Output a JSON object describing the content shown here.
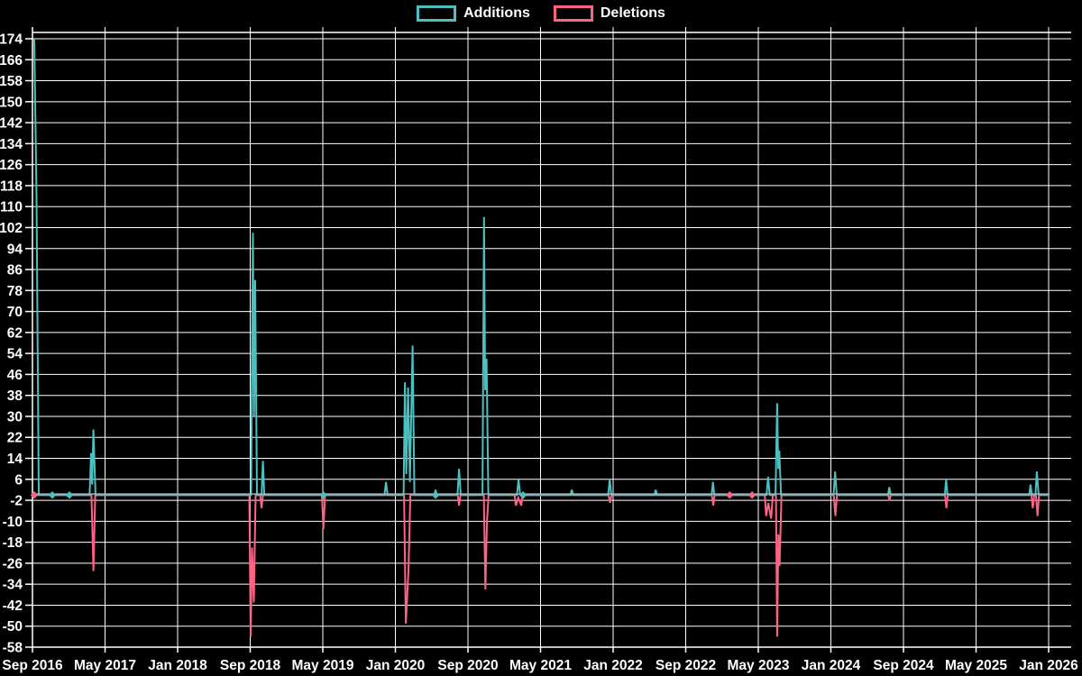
{
  "legend": {
    "additions_label": "Additions",
    "deletions_label": "Deletions"
  },
  "colors": {
    "background": "#000000",
    "grid": "#ffffff",
    "text": "#ffffff",
    "additions": "#4BC0C0",
    "deletions": "#FF6384",
    "zero_baseline": "#aab8be"
  },
  "chart_data": {
    "type": "line",
    "title": "",
    "xlabel": "",
    "ylabel": "",
    "legend_position": "top-center",
    "grid": true,
    "x_axis": {
      "tick_labels": [
        "Sep 2016",
        "May 2017",
        "Jan 2018",
        "Sep 2018",
        "May 2019",
        "Jan 2020",
        "Sep 2020",
        "May 2021",
        "Jan 2022",
        "Sep 2022",
        "May 2023",
        "Jan 2024",
        "Sep 2024",
        "May 2025",
        "Jan 2026"
      ],
      "months_per_tick": 8
    },
    "y_axis": {
      "min": -58,
      "max": 174,
      "step": 8,
      "tick_labels": [
        "174",
        "166",
        "158",
        "150",
        "142",
        "134",
        "126",
        "118",
        "110",
        "102",
        "94",
        "86",
        "78",
        "70",
        "62",
        "54",
        "46",
        "38",
        "30",
        "22",
        "14",
        "6",
        "-2",
        "-10",
        "-18",
        "-26",
        "-34",
        "-42",
        "-50",
        "-58"
      ]
    },
    "series": [
      {
        "name": "Additions",
        "color": "#4BC0C0",
        "points": [
          [
            0.2,
            174
          ],
          [
            0.45,
            114
          ],
          [
            0.7,
            0
          ],
          [
            2.19,
            0
          ],
          [
            4.08,
            0
          ],
          [
            6.3,
            0
          ],
          [
            6.46,
            16
          ],
          [
            6.58,
            4
          ],
          [
            6.72,
            25
          ],
          [
            6.95,
            0
          ],
          [
            24.1,
            0
          ],
          [
            24.3,
            100
          ],
          [
            24.42,
            30
          ],
          [
            24.55,
            82
          ],
          [
            24.75,
            0
          ],
          [
            25.25,
            0
          ],
          [
            25.4,
            13
          ],
          [
            25.55,
            0
          ],
          [
            32.07,
            0
          ],
          [
            38.8,
            0
          ],
          [
            38.97,
            5
          ],
          [
            39.15,
            0
          ],
          [
            40.9,
            0
          ],
          [
            41.05,
            43
          ],
          [
            41.2,
            8
          ],
          [
            41.4,
            41
          ],
          [
            41.6,
            5
          ],
          [
            41.9,
            57
          ],
          [
            42.1,
            0
          ],
          [
            44.3,
            0
          ],
          [
            44.43,
            2
          ],
          [
            44.56,
            0
          ],
          [
            46.85,
            0
          ],
          [
            47.02,
            10
          ],
          [
            47.2,
            0
          ],
          [
            49.6,
            0
          ],
          [
            49.77,
            106
          ],
          [
            49.9,
            40
          ],
          [
            50.05,
            52
          ],
          [
            50.25,
            0
          ],
          [
            53.4,
            0
          ],
          [
            53.58,
            6
          ],
          [
            53.75,
            0
          ],
          [
            54.08,
            0
          ],
          [
            59.3,
            0
          ],
          [
            59.44,
            2
          ],
          [
            59.6,
            0
          ],
          [
            63.45,
            0
          ],
          [
            63.62,
            6
          ],
          [
            63.8,
            0
          ],
          [
            68.55,
            0
          ],
          [
            68.69,
            2
          ],
          [
            68.85,
            0
          ],
          [
            74.85,
            0
          ],
          [
            75.0,
            5
          ],
          [
            75.15,
            0
          ],
          [
            80.9,
            0
          ],
          [
            81.08,
            7
          ],
          [
            81.25,
            0
          ],
          [
            81.9,
            0
          ],
          [
            82.08,
            35
          ],
          [
            82.2,
            10
          ],
          [
            82.32,
            17
          ],
          [
            82.5,
            0
          ],
          [
            88.3,
            0
          ],
          [
            88.47,
            9
          ],
          [
            88.65,
            0
          ],
          [
            94.3,
            0
          ],
          [
            94.43,
            3
          ],
          [
            94.6,
            0
          ],
          [
            100.55,
            0
          ],
          [
            100.7,
            6
          ],
          [
            100.85,
            0
          ],
          [
            109.85,
            0
          ],
          [
            110.0,
            4
          ],
          [
            110.15,
            0
          ],
          [
            110.55,
            0
          ],
          [
            110.7,
            9
          ],
          [
            110.9,
            0
          ],
          [
            112.1,
            0
          ]
        ]
      },
      {
        "name": "Deletions",
        "color": "#FF6384",
        "points": [
          [
            0.2,
            0
          ],
          [
            6.5,
            0
          ],
          [
            6.62,
            -15
          ],
          [
            6.72,
            -29
          ],
          [
            6.92,
            0
          ],
          [
            23.9,
            0
          ],
          [
            24.05,
            -54
          ],
          [
            24.2,
            -20
          ],
          [
            24.4,
            -41
          ],
          [
            24.6,
            0
          ],
          [
            25.1,
            0
          ],
          [
            25.25,
            -5
          ],
          [
            25.4,
            0
          ],
          [
            31.9,
            0
          ],
          [
            32.07,
            -13
          ],
          [
            32.25,
            0
          ],
          [
            40.95,
            0
          ],
          [
            41.15,
            -49
          ],
          [
            41.45,
            -28
          ],
          [
            41.65,
            0
          ],
          [
            44.43,
            0
          ],
          [
            46.88,
            0
          ],
          [
            47.02,
            -4
          ],
          [
            47.18,
            0
          ],
          [
            49.75,
            0
          ],
          [
            49.92,
            -36
          ],
          [
            50.1,
            -10
          ],
          [
            50.28,
            0
          ],
          [
            53.15,
            0
          ],
          [
            53.28,
            -4
          ],
          [
            53.55,
            -1
          ],
          [
            53.88,
            -4
          ],
          [
            54.0,
            0
          ],
          [
            63.5,
            0
          ],
          [
            63.66,
            -3
          ],
          [
            63.82,
            0
          ],
          [
            74.88,
            0
          ],
          [
            75.03,
            -4
          ],
          [
            75.18,
            0
          ],
          [
            76.84,
            0
          ],
          [
            79.32,
            0
          ],
          [
            80.72,
            0
          ],
          [
            80.86,
            -8
          ],
          [
            81.1,
            -3
          ],
          [
            81.41,
            -9
          ],
          [
            81.6,
            0
          ],
          [
            81.95,
            0
          ],
          [
            82.08,
            -54
          ],
          [
            82.22,
            -15
          ],
          [
            82.35,
            -27
          ],
          [
            82.55,
            0
          ],
          [
            88.32,
            0
          ],
          [
            88.5,
            -8
          ],
          [
            88.68,
            0
          ],
          [
            94.32,
            0
          ],
          [
            94.45,
            -2
          ],
          [
            94.6,
            0
          ],
          [
            100.58,
            0
          ],
          [
            100.73,
            -5
          ],
          [
            100.88,
            0
          ],
          [
            110.1,
            0
          ],
          [
            110.25,
            -5
          ],
          [
            110.4,
            0
          ],
          [
            110.6,
            0
          ],
          [
            110.78,
            -8
          ],
          [
            110.95,
            0
          ],
          [
            112.1,
            0
          ]
        ]
      }
    ],
    "markers": [
      {
        "series": "Deletions",
        "m": 0.2,
        "v": 0
      },
      {
        "series": "Additions",
        "m": 2.19,
        "v": 0
      },
      {
        "series": "Additions",
        "m": 4.08,
        "v": 0
      },
      {
        "series": "Additions",
        "m": 32.07,
        "v": 0
      },
      {
        "series": "Deletions",
        "m": 44.43,
        "v": 0
      },
      {
        "series": "Additions",
        "m": 44.43,
        "v": 0
      },
      {
        "series": "Additions",
        "m": 54.08,
        "v": 0
      },
      {
        "series": "Deletions",
        "m": 76.84,
        "v": 0
      },
      {
        "series": "Deletions",
        "m": 79.32,
        "v": 0
      }
    ]
  }
}
